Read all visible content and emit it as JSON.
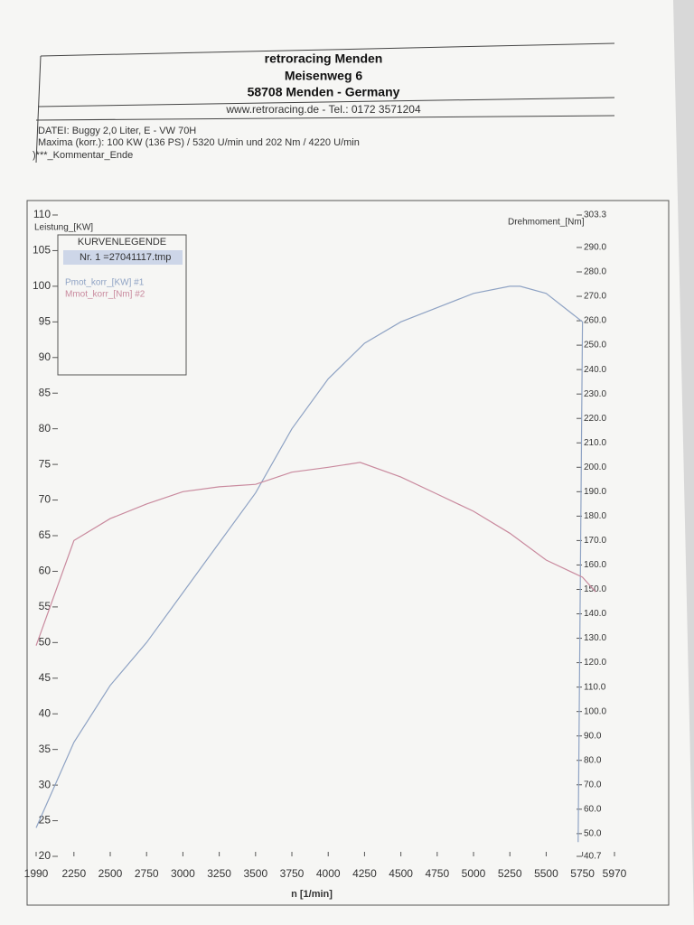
{
  "header": {
    "company": "retroracing Menden",
    "street": "Meisenweg 6",
    "city": "58708 Menden - Germany",
    "contact": "www.retroracing.de - Tel.: 0172 3571204",
    "file": "DATEI: Buggy 2,0 Liter, E - VW 70H",
    "maxima": "Maxima (korr.):  100 KW (136 PS) /  5320 U/min  und   202 Nm /  4220 U/min",
    "comment": ")***_Kommentar_Ende"
  },
  "chart_data": {
    "type": "line",
    "ylabel": "Leistung_[KW]",
    "y2label": "Drehmoment_[Nm]",
    "xlabel": "n  [1/min]",
    "legend_title": "KURVENLEGENDE",
    "legend_file": "Nr. 1 =27041117.tmp",
    "xlim": [
      1990,
      5970
    ],
    "xticks": [
      1990,
      2250,
      2500,
      2750,
      3000,
      3250,
      3500,
      3750,
      4000,
      4250,
      4500,
      4750,
      5000,
      5250,
      5500,
      5750,
      5970
    ],
    "ylim": [
      20,
      110
    ],
    "yticks": [
      20,
      25,
      30,
      35,
      40,
      45,
      50,
      55,
      60,
      65,
      70,
      75,
      80,
      85,
      90,
      95,
      100,
      105,
      110
    ],
    "y2lim": [
      40.7,
      303.3
    ],
    "y2ticks": [
      40.7,
      {
        "value": 50,
        "label": "50.0"
      },
      {
        "value": 60,
        "label": "60.0"
      },
      {
        "value": 70,
        "label": "70.0"
      },
      {
        "value": 80,
        "label": "80.0"
      },
      {
        "value": 90,
        "label": "90.0"
      },
      {
        "value": 100,
        "label": "100.0"
      },
      {
        "value": 110,
        "label": "110.0"
      },
      {
        "value": 120,
        "label": "120.0"
      },
      {
        "value": 130,
        "label": "130.0"
      },
      {
        "value": 140,
        "label": "140.0"
      },
      {
        "value": 150,
        "label": "150.0"
      },
      {
        "value": 160,
        "label": "160.0"
      },
      {
        "value": 170,
        "label": "170.0"
      },
      {
        "value": 180,
        "label": "180.0"
      },
      {
        "value": 190,
        "label": "190.0"
      },
      {
        "value": 200,
        "label": "200.0"
      },
      {
        "value": 210,
        "label": "210.0"
      },
      {
        "value": 220,
        "label": "220.0"
      },
      {
        "value": 230,
        "label": "230.0"
      },
      {
        "value": 240,
        "label": "240.0"
      },
      {
        "value": 250,
        "label": "250.0"
      },
      {
        "value": 260,
        "label": "260.0"
      },
      {
        "value": 270,
        "label": "270.0"
      },
      {
        "value": 280,
        "label": "280.0"
      },
      {
        "value": 290,
        "label": "290.0"
      },
      303.3
    ],
    "series": [
      {
        "name": "Pmot_korr_[KW] #1",
        "color": "#8fa3c4",
        "axis": "y",
        "x": [
          1990,
          2250,
          2500,
          2750,
          3000,
          3250,
          3500,
          3750,
          4000,
          4250,
          4500,
          4750,
          5000,
          5250,
          5320,
          5500,
          5750,
          5720
        ],
        "values": [
          24,
          36,
          44,
          50,
          57,
          64,
          71,
          80,
          87,
          92,
          95,
          97,
          99,
          100,
          100,
          99,
          95,
          22
        ]
      },
      {
        "name": "Mmot_korr_[Nm] #2",
        "color": "#c98a9e",
        "axis": "y2",
        "x": [
          1990,
          2250,
          2500,
          2750,
          3000,
          3250,
          3500,
          3750,
          4000,
          4220,
          4500,
          4750,
          5000,
          5250,
          5500,
          5750,
          5840
        ],
        "values": [
          127,
          170,
          179,
          185,
          190,
          192,
          193,
          198,
          200,
          202,
          196,
          189,
          182,
          173,
          162,
          155,
          149
        ]
      }
    ]
  }
}
